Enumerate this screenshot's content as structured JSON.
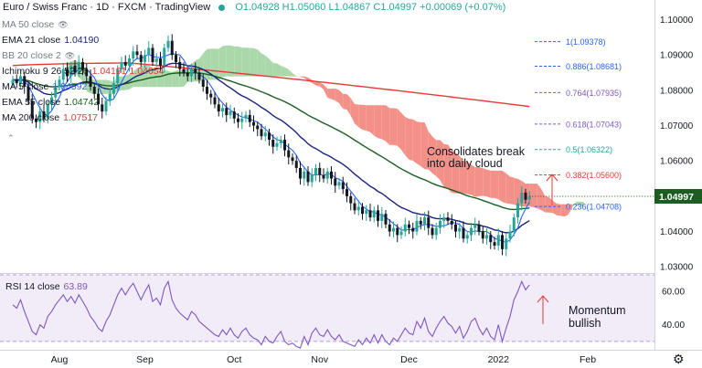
{
  "header": {
    "title": "Euro / Swiss Franc · 1D · FXCM · TradingView",
    "ohlc": "O1.04928 H1.05060 L1.04867 C1.04997 +0.00069 (+0.07%)"
  },
  "legend": [
    {
      "label": "MA 50 close",
      "value": "",
      "color": "#787b86",
      "hidden": true
    },
    {
      "label": "EMA 21 close",
      "value": "1.04190",
      "color": "#1a237e"
    },
    {
      "label": "BB 20 close 2",
      "value": "",
      "color": "#787b86",
      "hidden": true
    },
    {
      "label": "Ichimoku 9 26 52 26",
      "value": "1.04191  1.04654",
      "color": "#e53935"
    },
    {
      "label": "MA 5 close",
      "value": "1.04592",
      "color": "#2962ff"
    },
    {
      "label": "EMA 55 close",
      "value": "1.04742",
      "color": "#1b5e20"
    },
    {
      "label": "MA 200 close",
      "value": "1.07517",
      "color": "#e53935"
    }
  ],
  "current_price": {
    "value": "1.04997",
    "color": "#1b5e20"
  },
  "annotations": {
    "cloud_note": [
      "Consolidates break",
      "into daily cloud"
    ],
    "rsi_note": [
      "Momentum",
      "bullish"
    ]
  },
  "rsi": {
    "label": "RSI 14 close",
    "value": "63.89"
  },
  "colors": {
    "up": "#26a69a",
    "down": "#131722",
    "ema21": "#1a237e",
    "ema55": "#1b5e20",
    "ma200": "#e53935",
    "ma5": "#2962ff",
    "cloud_bear": "#f28b82",
    "cloud_bull": "#a5d6a7",
    "rsi": "#7e57c2",
    "rsi_band": "#ede7f6",
    "arrow": "#e53935"
  },
  "chart_data": [
    {
      "type": "candlestick",
      "title": "Euro / Swiss Franc · 1D · FXCM",
      "x_ticks": [
        "Aug",
        "Sep",
        "Oct",
        "Nov",
        "Dec",
        "2022",
        "Feb"
      ],
      "y_ticks": [
        "1.10000",
        "1.09000",
        "1.08000",
        "1.07000",
        "1.06000",
        "1.05000",
        "1.04000",
        "1.03000"
      ],
      "ylim": [
        1.0285,
        1.1035
      ],
      "fib_levels": [
        {
          "label": "1(1.09378)",
          "value": 1.09378,
          "color": "#2962ff"
        },
        {
          "label": "0.886(1.08681)",
          "value": 1.08681,
          "color": "#2962ff"
        },
        {
          "label": "0.764(1.07935)",
          "value": 1.07935,
          "color": "#7e57c2"
        },
        {
          "label": "0.618(1.07043)",
          "value": 1.07043,
          "color": "#7e57c2"
        },
        {
          "label": "0.5(1.06322)",
          "value": 1.06322,
          "color": "#26a69a"
        },
        {
          "label": "0.382(1.05600)",
          "value": 1.056,
          "color": "#e53935"
        },
        {
          "label": "0.236(1.04708)",
          "value": 1.04708,
          "color": "#2962ff"
        }
      ],
      "close": [
        1.083,
        1.082,
        1.084,
        1.081,
        1.077,
        1.072,
        1.071,
        1.074,
        1.072,
        1.076,
        1.078,
        1.081,
        1.083,
        1.086,
        1.084,
        1.087,
        1.085,
        1.088,
        1.086,
        1.084,
        1.081,
        1.079,
        1.076,
        1.074,
        1.077,
        1.079,
        1.082,
        1.086,
        1.088,
        1.087,
        1.089,
        1.091,
        1.09,
        1.088,
        1.09,
        1.092,
        1.088,
        1.089,
        1.087,
        1.092,
        1.094,
        1.09,
        1.088,
        1.086,
        1.085,
        1.084,
        1.086,
        1.085,
        1.083,
        1.081,
        1.079,
        1.078,
        1.076,
        1.074,
        1.075,
        1.073,
        1.074,
        1.072,
        1.071,
        1.072,
        1.073,
        1.071,
        1.07,
        1.069,
        1.067,
        1.068,
        1.066,
        1.064,
        1.065,
        1.066,
        1.063,
        1.061,
        1.06,
        1.058,
        1.055,
        1.057,
        1.054,
        1.056,
        1.058,
        1.056,
        1.055,
        1.057,
        1.055,
        1.053,
        1.054,
        1.052,
        1.05,
        1.048,
        1.046,
        1.047,
        1.045,
        1.046,
        1.044,
        1.046,
        1.043,
        1.045,
        1.042,
        1.04,
        1.041,
        1.039,
        1.04,
        1.042,
        1.041,
        1.04,
        1.043,
        1.042,
        1.044,
        1.041,
        1.039,
        1.041,
        1.043,
        1.044,
        1.043,
        1.042,
        1.04,
        1.041,
        1.038,
        1.039,
        1.041,
        1.042,
        1.04,
        1.038,
        1.039,
        1.037,
        1.036,
        1.039,
        1.035,
        1.038,
        1.04,
        1.044,
        1.048,
        1.051,
        1.049,
        1.05
      ]
    },
    {
      "type": "line",
      "title": "RSI 14 close",
      "y_ticks": [
        "60.00",
        "40.00"
      ],
      "ylim": [
        25,
        70
      ],
      "values": [
        52,
        50,
        55,
        48,
        42,
        36,
        34,
        40,
        38,
        45,
        48,
        52,
        55,
        58,
        54,
        57,
        53,
        58,
        54,
        50,
        45,
        42,
        38,
        36,
        42,
        46,
        52,
        58,
        62,
        58,
        62,
        65,
        60,
        55,
        60,
        64,
        54,
        56,
        52,
        62,
        66,
        55,
        50,
        47,
        45,
        43,
        48,
        46,
        42,
        40,
        38,
        36,
        34,
        33,
        37,
        34,
        38,
        34,
        32,
        36,
        38,
        34,
        32,
        31,
        28,
        33,
        30,
        29,
        33,
        36,
        30,
        28,
        29,
        27,
        26,
        33,
        28,
        35,
        38,
        34,
        33,
        37,
        33,
        31,
        34,
        30,
        29,
        28,
        27,
        31,
        28,
        32,
        29,
        34,
        29,
        34,
        30,
        28,
        32,
        30,
        34,
        38,
        35,
        34,
        42,
        38,
        44,
        36,
        33,
        38,
        42,
        45,
        41,
        39,
        35,
        39,
        32,
        36,
        42,
        44,
        38,
        34,
        38,
        33,
        31,
        40,
        30,
        38,
        45,
        55,
        60,
        66,
        61,
        64
      ]
    }
  ],
  "x_axis": [
    "Aug",
    "Sep",
    "Oct",
    "Nov",
    "Dec",
    "2022",
    "Feb"
  ]
}
